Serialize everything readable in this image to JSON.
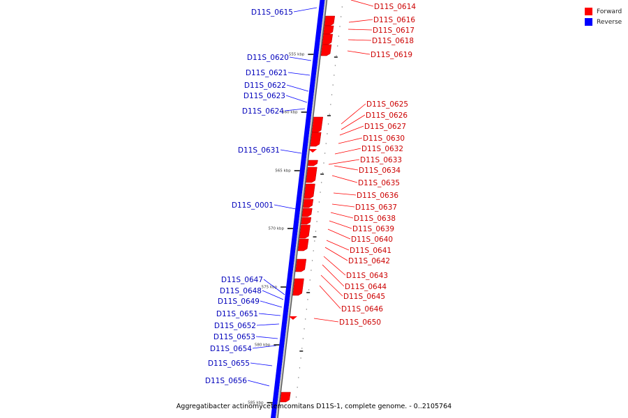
{
  "legend": [
    {
      "label": "Forward",
      "color": "#ff0000"
    },
    {
      "label": "Reverse",
      "color": "#0000ff"
    }
  ],
  "caption": "Aggregatibacter actinomycetemcomitans D11S-1, complete genome. - 0..2105764",
  "ticks": [
    "555 kbp",
    "560 kbp",
    "565 kbp",
    "570 kbp",
    "575 kbp",
    "580 kbp",
    "585 kbp"
  ],
  "forward_genes": [
    "D11S_0614",
    "D11S_0616",
    "D11S_0617",
    "D11S_0618",
    "D11S_0619",
    "D11S_0625",
    "D11S_0626",
    "D11S_0627",
    "D11S_0630",
    "D11S_0632",
    "D11S_0633",
    "D11S_0634",
    "D11S_0635",
    "D11S_0636",
    "D11S_0637",
    "D11S_0638",
    "D11S_0639",
    "D11S_0640",
    "D11S_0641",
    "D11S_0642",
    "D11S_0643",
    "D11S_0644",
    "D11S_0645",
    "D11S_0646",
    "D11S_0650"
  ],
  "reverse_genes": [
    "D11S_0615",
    "D11S_0620",
    "D11S_0621",
    "D11S_0622",
    "D11S_0623",
    "D11S_0624",
    "D11S_0631",
    "D11S_0001",
    "D11S_0647",
    "D11S_0648",
    "D11S_0649",
    "D11S_0651",
    "D11S_0652",
    "D11S_0653",
    "D11S_0654",
    "D11S_0655",
    "D11S_0656"
  ]
}
